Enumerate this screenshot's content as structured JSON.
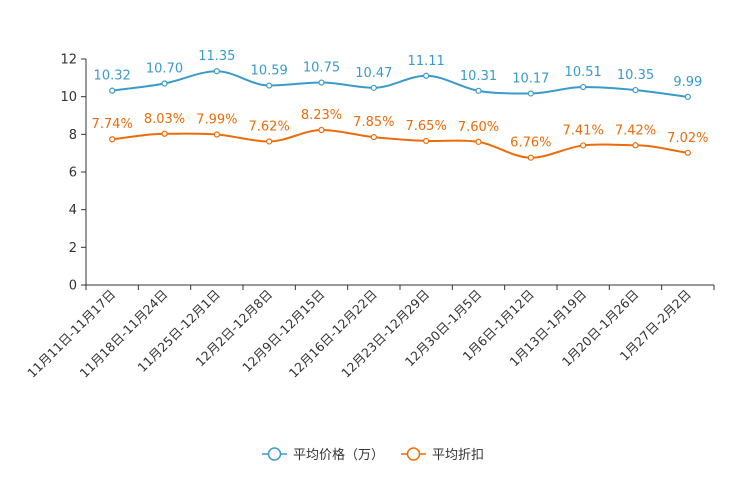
{
  "chart_data": {
    "type": "line",
    "title": "",
    "xlabel": "",
    "ylabel": "",
    "ylim": [
      0,
      12
    ],
    "yticks": [
      0,
      2,
      4,
      6,
      8,
      10,
      12
    ],
    "grid": false,
    "legend_position": "bottom-center",
    "categories": [
      "11月11日-11月17日",
      "11月18日-11月24日",
      "11月25日-12月1日",
      "12月2日-12月8日",
      "12月9日-12月15日",
      "12月16日-12月22日",
      "12月23日-12月29日",
      "12月30日-1月5日",
      "1月6日-1月12日",
      "1月13日-1月19日",
      "1月20日-1月26日",
      "1月27日-2月2日"
    ],
    "series": [
      {
        "name": "平均价格（万）",
        "color": "#3a9bc8",
        "values": [
          10.32,
          10.7,
          11.35,
          10.59,
          10.75,
          10.47,
          11.11,
          10.31,
          10.17,
          10.51,
          10.35,
          9.99
        ],
        "labels": [
          "10.32",
          "10.70",
          "11.35",
          "10.59",
          "10.75",
          "10.47",
          "11.11",
          "10.31",
          "10.17",
          "10.51",
          "10.35",
          "9.99"
        ]
      },
      {
        "name": "平均折扣",
        "color": "#ec6c0b",
        "values": [
          7.74,
          8.03,
          7.99,
          7.62,
          8.23,
          7.85,
          7.65,
          7.6,
          6.76,
          7.41,
          7.42,
          7.02
        ],
        "labels": [
          "7.74%",
          "8.03%",
          "7.99%",
          "7.62%",
          "8.23%",
          "7.85%",
          "7.65%",
          "7.60%",
          "6.76%",
          "7.41%",
          "7.42%",
          "7.02%"
        ]
      }
    ]
  }
}
